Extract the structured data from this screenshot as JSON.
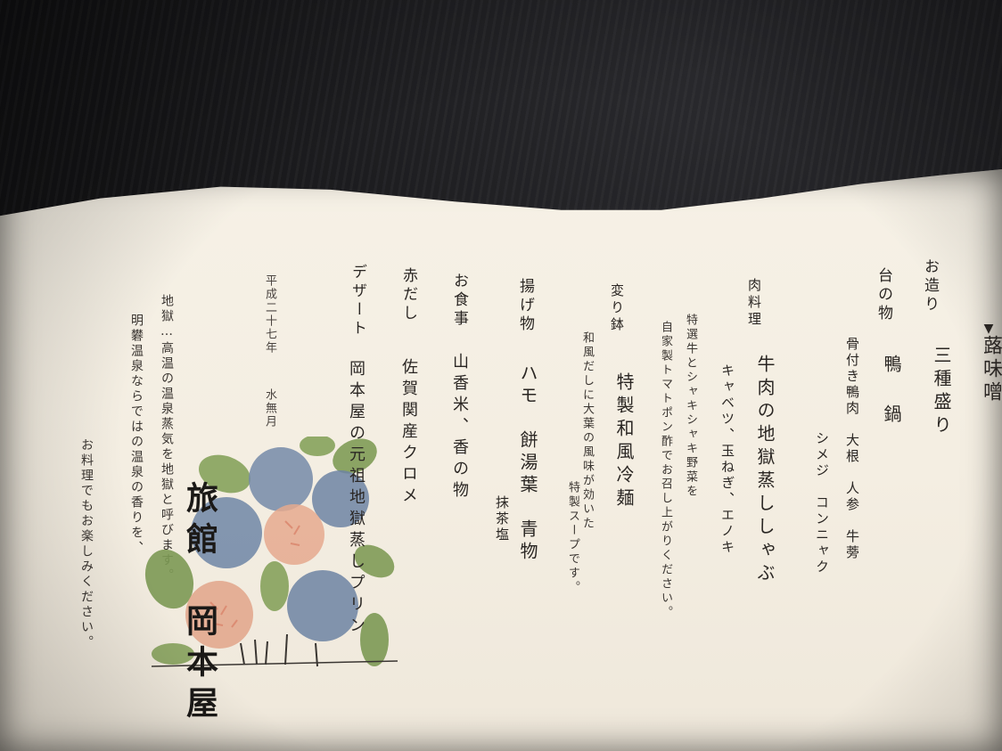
{
  "menu": {
    "heading_partial": "蕗味噌",
    "heading_marker": "▼",
    "items": [
      {
        "course": "お造り",
        "dish": "三種盛り"
      },
      {
        "course": "台の物",
        "dish": "鴨 鍋",
        "details": [
          "骨付き鴨肉　大根　人参　牛蒡",
          "シメジ　コンニャク"
        ]
      },
      {
        "course": "肉料理",
        "dish": "牛肉の地獄蒸ししゃぶ",
        "details": [
          "キャベツ、玉ねぎ、エノキ",
          "特選牛とシャキシャキ野菜を",
          "自家製トマトポン酢でお召し上がりください。"
        ]
      },
      {
        "course": "変り鉢",
        "dish": "特製和風冷麺",
        "details": [
          "和風だしに大葉の風味が効いた",
          "特製スープです。"
        ]
      },
      {
        "course": "揚げ物",
        "dish": "ハモ　餅湯葉　青物",
        "details": [
          "抹茶塩"
        ]
      },
      {
        "course": "お食事",
        "dish": "山香米、香の物"
      },
      {
        "course": "赤だし",
        "dish": "佐賀関産クロメ"
      },
      {
        "course": "デザート",
        "dish": "岡本屋の元祖地獄蒸しプリン"
      }
    ]
  },
  "date": {
    "era": "平成二十七年",
    "month": "水無月"
  },
  "note": {
    "lines": [
      "地獄…高温の温泉蒸気を地獄と呼びます。",
      "明礬温泉ならではの温泉の香りを、",
      "お料理でもお楽しみください。"
    ]
  },
  "brand": {
    "name": "旅館　岡本屋"
  },
  "colors": {
    "paper": "#f5efe3",
    "ink": "#2a2623",
    "leaf": "#7f9b57",
    "flower_blue": "#6d84a3",
    "flower_pink": "#e2a48a"
  }
}
